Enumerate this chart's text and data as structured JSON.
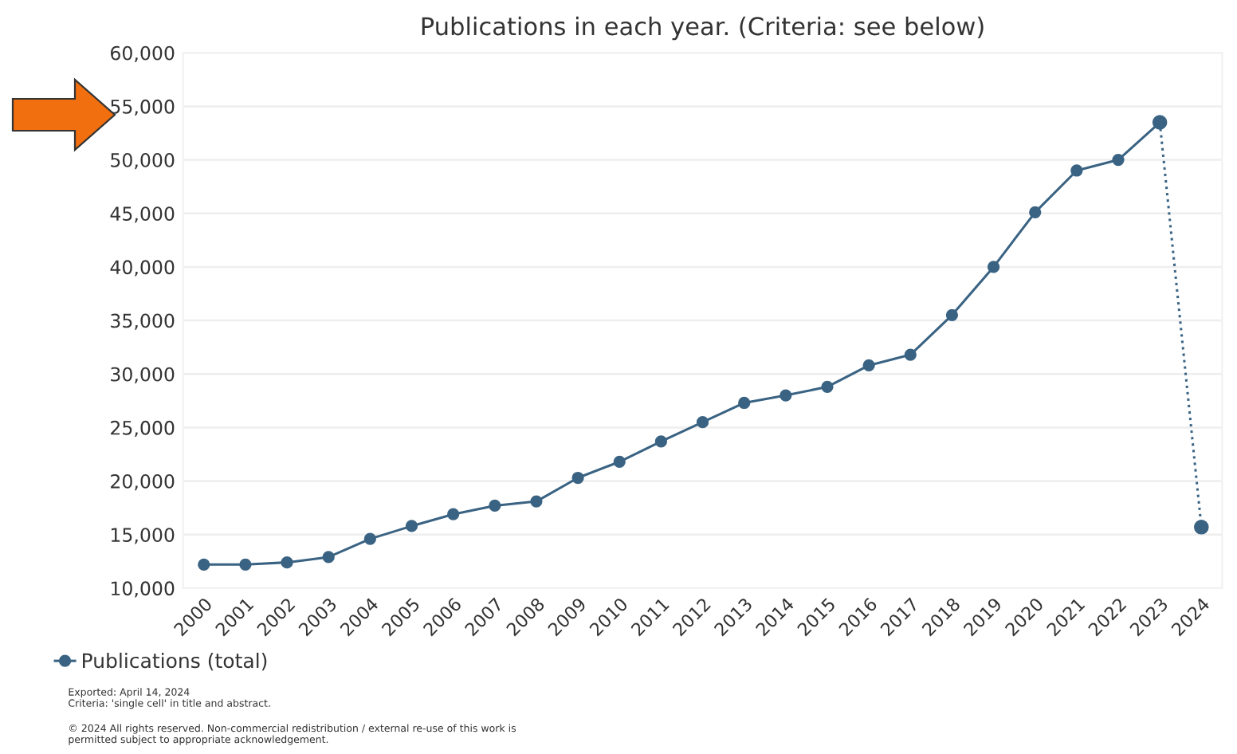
{
  "chart_data": {
    "type": "line",
    "title": "Publications in each year. (Criteria: see below)",
    "categories": [
      "2000",
      "2001",
      "2002",
      "2003",
      "2004",
      "2005",
      "2006",
      "2007",
      "2008",
      "2009",
      "2010",
      "2011",
      "2012",
      "2013",
      "2014",
      "2015",
      "2016",
      "2017",
      "2018",
      "2019",
      "2020",
      "2021",
      "2022",
      "2023",
      "2024"
    ],
    "series": [
      {
        "name": "Publications (total)",
        "color": "#3a6383",
        "marker": "circle",
        "line_style": "solid",
        "values": [
          12200,
          12200,
          12400,
          12900,
          14600,
          15800,
          16900,
          17700,
          18100,
          20300,
          21800,
          23700,
          25500,
          27300,
          28000,
          28800,
          30800,
          31800,
          35500,
          40000,
          45100,
          49000,
          50000,
          53500,
          null
        ]
      },
      {
        "color": "#3a6383",
        "marker": "circle",
        "line_style": "dotted",
        "values": [
          null,
          null,
          null,
          null,
          null,
          null,
          null,
          null,
          null,
          null,
          null,
          null,
          null,
          null,
          null,
          null,
          null,
          null,
          null,
          null,
          null,
          null,
          null,
          53500,
          15700
        ]
      }
    ],
    "ylim": [
      10000,
      60000
    ],
    "yticks": [
      {
        "value": 10000,
        "label": "10,000"
      },
      {
        "value": 15000,
        "label": "15,000"
      },
      {
        "value": 20000,
        "label": "20,000"
      },
      {
        "value": 25000,
        "label": "25,000"
      },
      {
        "value": 30000,
        "label": "30,000"
      },
      {
        "value": 35000,
        "label": "35,000"
      },
      {
        "value": 40000,
        "label": "40,000"
      },
      {
        "value": 45000,
        "label": "45,000"
      },
      {
        "value": 50000,
        "label": "50,000"
      },
      {
        "value": 55000,
        "label": "55,000"
      },
      {
        "value": 60000,
        "label": "60,000"
      }
    ],
    "grid": "y",
    "legend": "bottom left",
    "annotations": [
      "Exported: April 14, 2024\nCriteria: 'single cell' in title and abstract.",
      "© 2024 All rights reserved. Non-commercial redistribution / external re-use of this work is\npermitted subject to appropriate acknowledgement."
    ]
  }
}
